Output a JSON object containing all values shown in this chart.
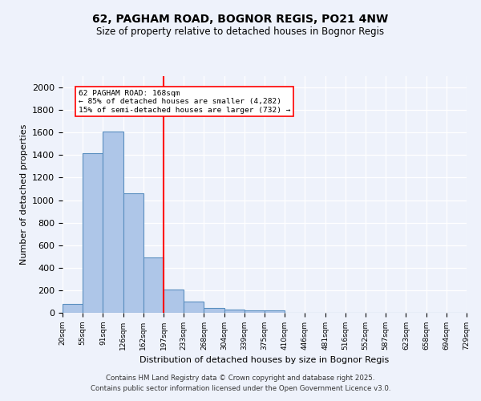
{
  "title1": "62, PAGHAM ROAD, BOGNOR REGIS, PO21 4NW",
  "title2": "Size of property relative to detached houses in Bognor Regis",
  "xlabel": "Distribution of detached houses by size in Bognor Regis",
  "ylabel": "Number of detached properties",
  "bar_values": [
    80,
    1420,
    1610,
    1060,
    490,
    205,
    100,
    40,
    30,
    20,
    20,
    0,
    0,
    0,
    0,
    0,
    0,
    0,
    0,
    0
  ],
  "bin_labels": [
    "20sqm",
    "55sqm",
    "91sqm",
    "126sqm",
    "162sqm",
    "197sqm",
    "233sqm",
    "268sqm",
    "304sqm",
    "339sqm",
    "375sqm",
    "410sqm",
    "446sqm",
    "481sqm",
    "516sqm",
    "552sqm",
    "587sqm",
    "623sqm",
    "658sqm",
    "694sqm",
    "729sqm"
  ],
  "bar_color": "#aec6e8",
  "bar_edge_color": "#5a8fc0",
  "vline_x": 4.5,
  "vline_color": "red",
  "annotation_line1": "62 PAGHAM ROAD: 168sqm",
  "annotation_line2": "← 85% of detached houses are smaller (4,282)",
  "annotation_line3": "15% of semi-detached houses are larger (732) →",
  "annotation_box_color": "white",
  "annotation_box_edge": "red",
  "ylim": [
    0,
    2100
  ],
  "yticks": [
    0,
    200,
    400,
    600,
    800,
    1000,
    1200,
    1400,
    1600,
    1800,
    2000
  ],
  "footer1": "Contains HM Land Registry data © Crown copyright and database right 2025.",
  "footer2": "Contains public sector information licensed under the Open Government Licence v3.0.",
  "bg_color": "#eef2fb",
  "plot_bg_color": "#eef2fb"
}
